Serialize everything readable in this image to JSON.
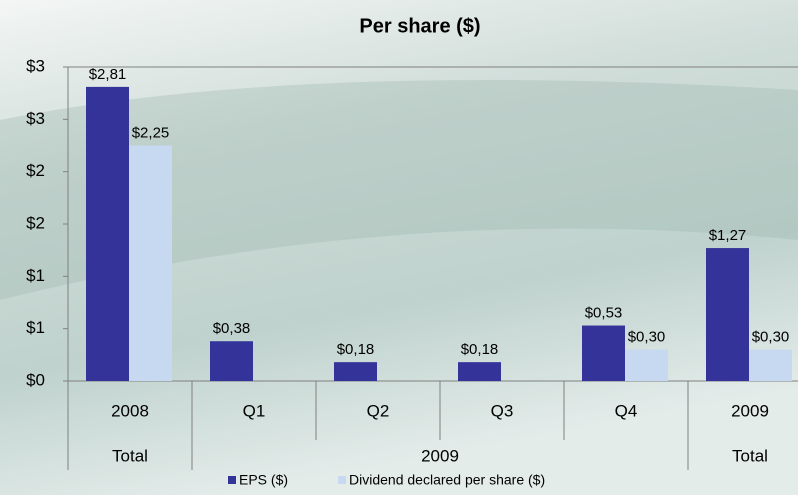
{
  "chart_data": {
    "type": "bar",
    "title": "Per share ($)",
    "categories": [
      "2008",
      "Q1",
      "Q2",
      "Q3",
      "Q4",
      "2009"
    ],
    "category_groups": [
      "Total",
      "2009",
      null,
      null,
      null,
      "Total"
    ],
    "series": [
      {
        "name": "EPS ($)",
        "color": "#333399",
        "values": [
          2.81,
          0.38,
          0.18,
          0.18,
          0.53,
          1.27
        ],
        "value_labels": [
          "$2,81",
          "$0,38",
          "$0,18",
          "$0,18",
          "$0,53",
          "$1,27"
        ]
      },
      {
        "name": "Dividend declared per share ($)",
        "color": "#c6d9f1",
        "values": [
          2.25,
          null,
          null,
          null,
          0.3,
          0.3
        ],
        "value_labels": [
          "$2,25",
          null,
          null,
          null,
          "$0,30",
          "$0,30"
        ]
      }
    ],
    "ylim": [
      0,
      3
    ],
    "yticks": [
      {
        "value": 0,
        "label": "$0"
      },
      {
        "value": 0.5,
        "label": "$1"
      },
      {
        "value": 1,
        "label": "$1"
      },
      {
        "value": 1.5,
        "label": "$2"
      },
      {
        "value": 2,
        "label": "$2"
      },
      {
        "value": 2.5,
        "label": "$3"
      },
      {
        "value": 3,
        "label": "$3"
      }
    ],
    "legend": "bottom"
  }
}
